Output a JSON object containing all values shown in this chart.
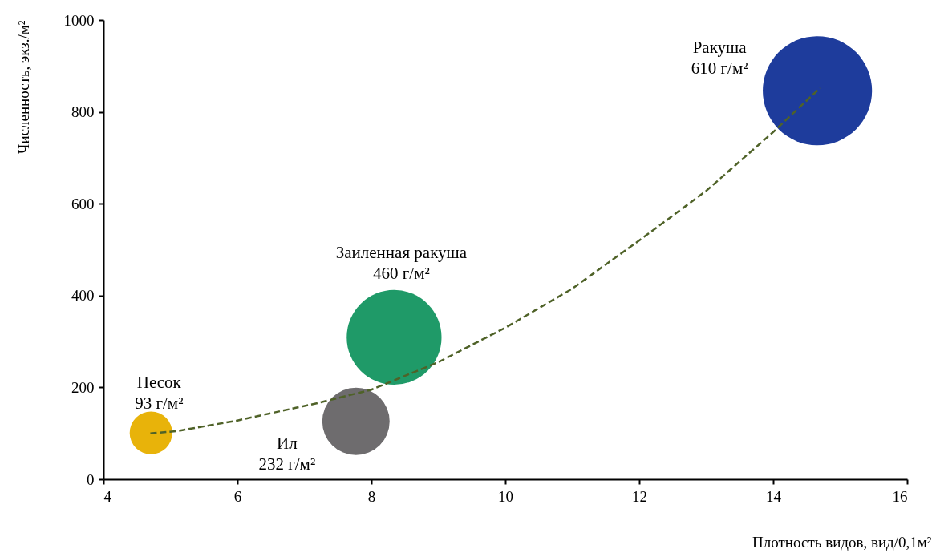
{
  "chart_data": {
    "type": "bubble",
    "xlabel": "Плотность видов, вид/0,1м²",
    "ylabel": "Численность, экз./м²",
    "xlim": [
      4,
      16
    ],
    "xticks": [
      4,
      6,
      8,
      10,
      12,
      14,
      16
    ],
    "ylim": [
      0,
      1000
    ],
    "yticks": [
      0,
      200,
      400,
      600,
      800,
      1000
    ],
    "grid": false,
    "series": [
      {
        "name": "Песок",
        "color": "#e8b30a",
        "x": [
          4.71
        ],
        "values": [
          101
        ],
        "sizes": [
          93
        ],
        "value_labels": [
          "93 г/м²"
        ]
      },
      {
        "name": "Ил",
        "color": "#6e6c6e",
        "x": [
          7.77
        ],
        "values": [
          126
        ],
        "sizes": [
          232
        ],
        "value_labels": [
          "232 г/м²"
        ]
      },
      {
        "name": "Заиленная ракуша",
        "color": "#1f9a68",
        "x": [
          8.34
        ],
        "values": [
          309
        ],
        "sizes": [
          460
        ],
        "value_labels": [
          "460 г/м²"
        ]
      },
      {
        "name": "Ракуша",
        "color": "#1e3c9c",
        "x": [
          14.66
        ],
        "values": [
          846
        ],
        "sizes": [
          610
        ],
        "value_labels": [
          "610 г/м²"
        ]
      },
      {
        "type": "line",
        "color": "#4f6228",
        "line_style": "dashed",
        "marker": "none",
        "x": [
          4.7,
          5.1,
          6,
          7.2,
          8,
          9,
          10,
          11,
          12,
          13,
          14,
          14.7
        ],
        "values": [
          100,
          105,
          128,
          166,
          195,
          255,
          330,
          415,
          520,
          628,
          756,
          852
        ]
      }
    ]
  }
}
